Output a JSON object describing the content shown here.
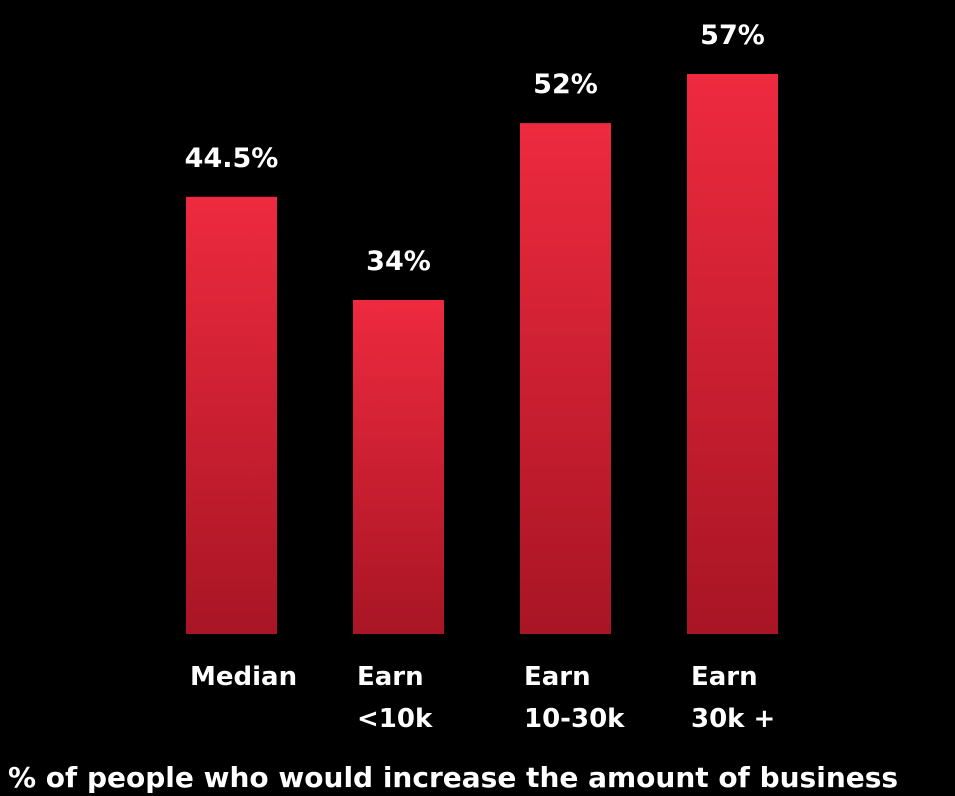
{
  "chart_data": {
    "type": "bar",
    "categories": [
      [
        "Median"
      ],
      [
        "Earn",
        "<10k"
      ],
      [
        "Earn",
        "10-30k"
      ],
      [
        "Earn",
        "30k +"
      ]
    ],
    "values": [
      44.5,
      34,
      52,
      57
    ],
    "value_labels": [
      "44.5%",
      "34%",
      "52%",
      "57%"
    ],
    "title": "% of people who would increase the amount of business",
    "xlabel": "",
    "ylabel": "",
    "ylim": [
      0,
      57
    ],
    "grid": false,
    "legend": "none"
  },
  "colors": {
    "background": "#000000",
    "bar_top": "#ee2a3f",
    "bar_bottom": "#a81524",
    "text": "#ffffff"
  }
}
